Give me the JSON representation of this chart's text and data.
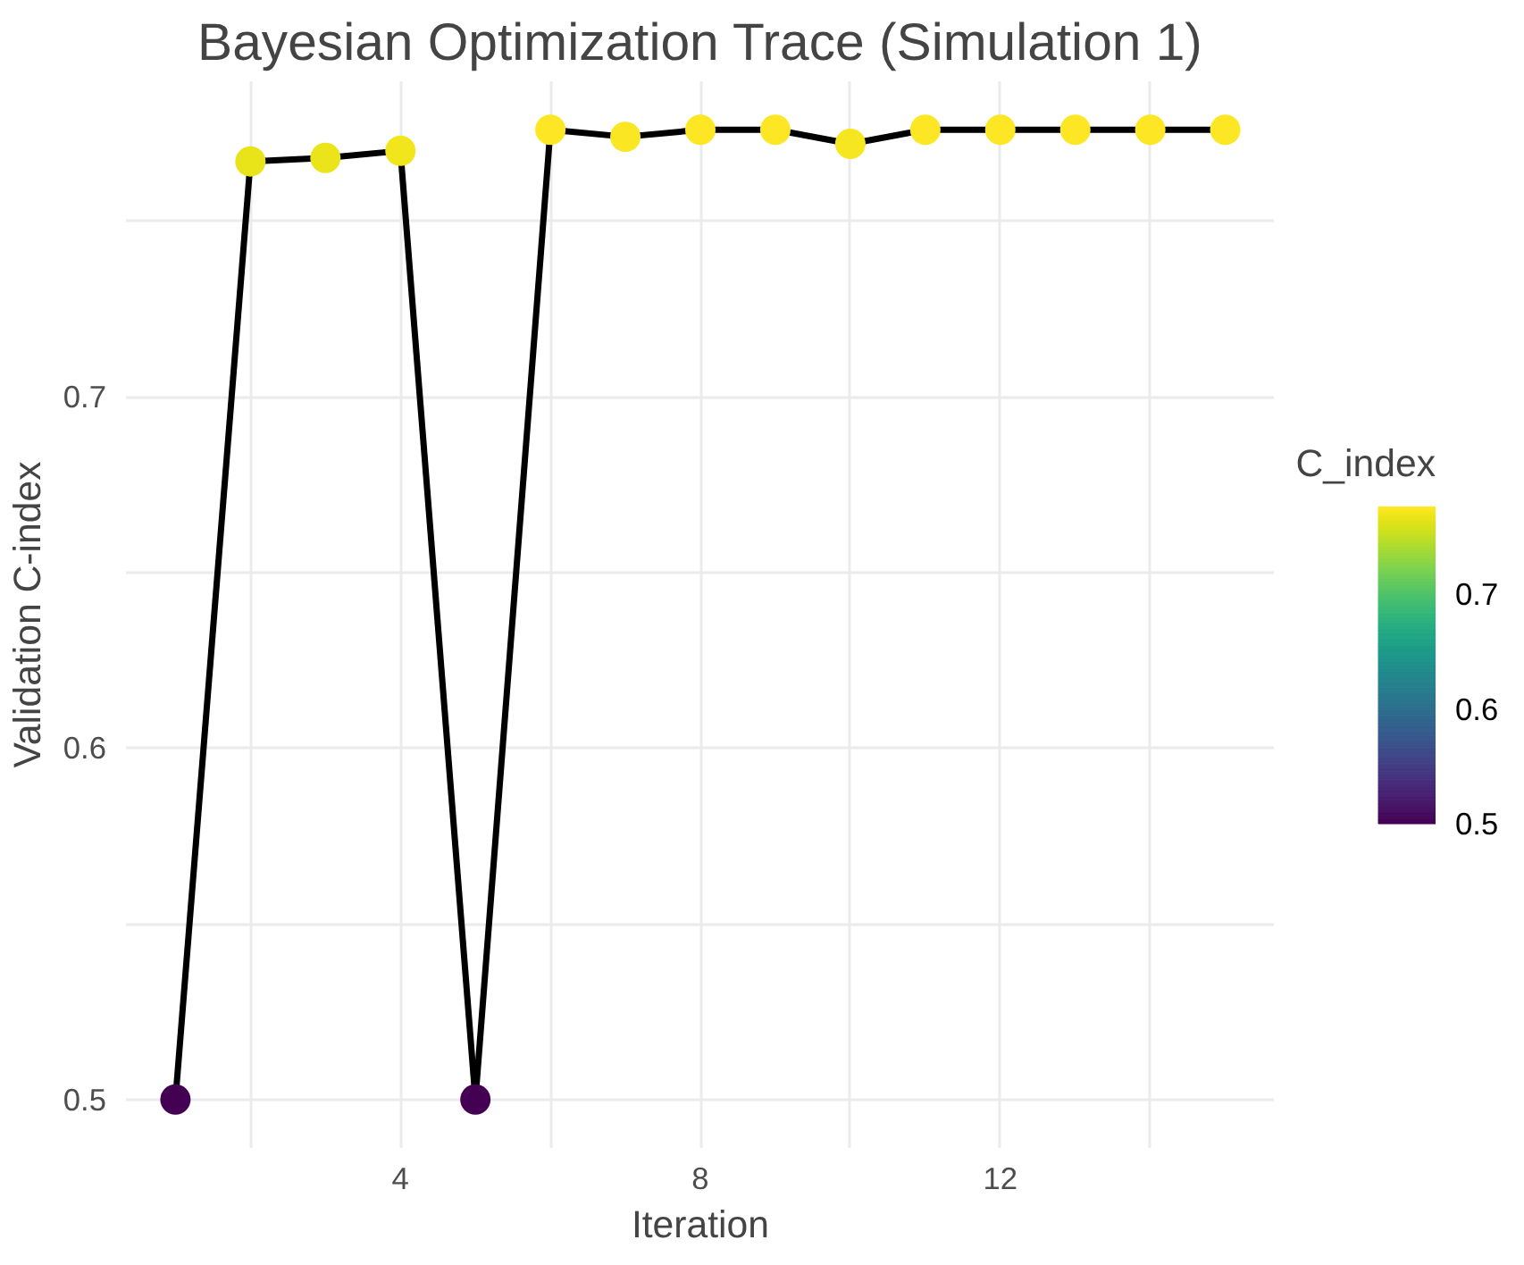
{
  "chart_data": {
    "type": "line",
    "title": "Bayesian Optimization Trace (Simulation 1)",
    "xlabel": "Iteration",
    "ylabel": "Validation C-index",
    "legend_title": "C_index",
    "x": [
      1,
      2,
      3,
      4,
      5,
      6,
      7,
      8,
      9,
      10,
      11,
      12,
      13,
      14,
      15
    ],
    "series": [
      {
        "color": "#000000",
        "values": [
          0.5,
          0.767,
          0.768,
          0.77,
          0.5,
          0.776,
          0.774,
          0.776,
          0.776,
          0.772,
          0.776,
          0.776,
          0.776,
          0.776,
          0.776
        ]
      }
    ],
    "marker": "circle",
    "line_style": "solid",
    "xlim": [
      0.34,
      15.66
    ],
    "ylim": [
      0.4862,
      0.7898
    ],
    "xticks": [
      {
        "value": 2,
        "label": null
      },
      4,
      {
        "value": 6,
        "label": null
      },
      8,
      {
        "value": 10,
        "label": null
      },
      12,
      {
        "value": 14,
        "label": null
      }
    ],
    "yticks": [
      0.5,
      {
        "value": 0.55,
        "label": null
      },
      0.6,
      {
        "value": 0.65,
        "label": null
      },
      0.7,
      {
        "value": 0.75,
        "label": null
      }
    ],
    "clim": [
      0.5,
      0.776
    ],
    "cticks": [
      0.5,
      0.6,
      0.7
    ],
    "grid": true
  }
}
